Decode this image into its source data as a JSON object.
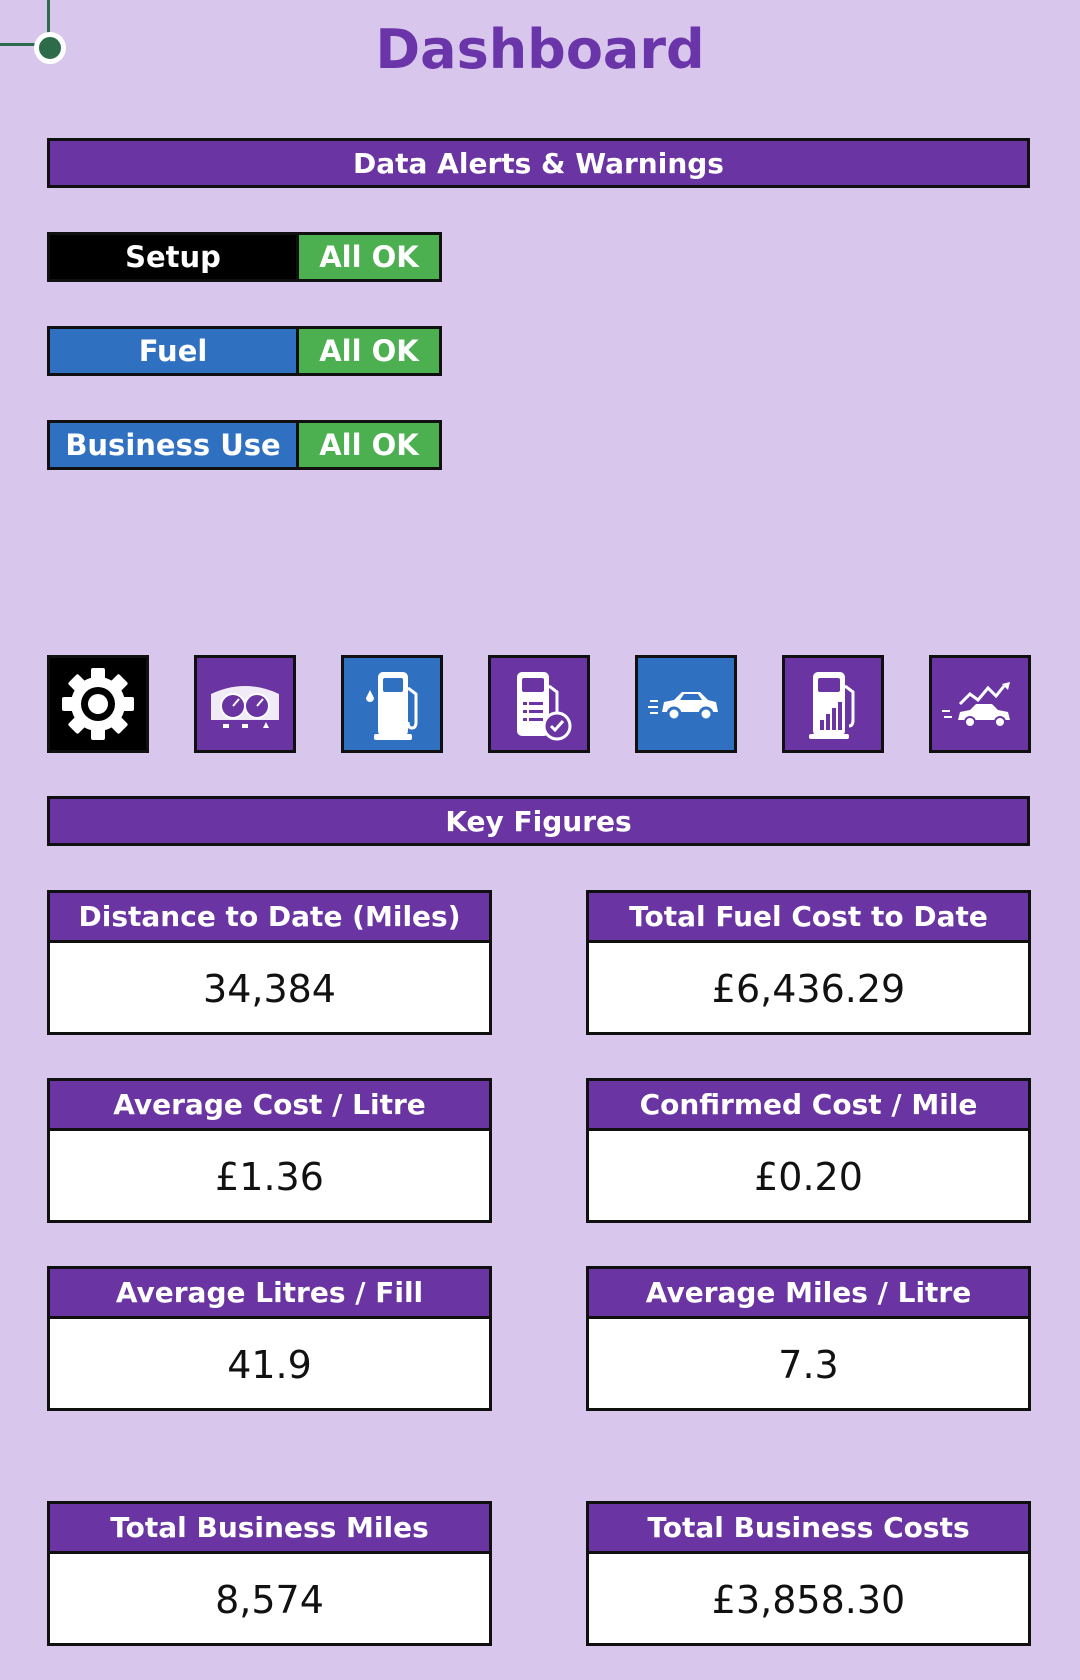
{
  "title": "Dashboard",
  "alerts_banner": "Data Alerts & Warnings",
  "alerts": [
    {
      "label": "Setup",
      "status": "All OK",
      "color": "#000000"
    },
    {
      "label": "Fuel",
      "status": "All OK",
      "color": "#3070c0"
    },
    {
      "label": "Business Use",
      "status": "All OK",
      "color": "#3070c0"
    }
  ],
  "icons": [
    {
      "name": "settings-gear-icon",
      "bg": "#000000"
    },
    {
      "name": "dashboard-gauges-icon",
      "bg": "#6a35a2"
    },
    {
      "name": "fuel-pump-icon",
      "bg": "#3070c0"
    },
    {
      "name": "fuel-log-check-icon",
      "bg": "#6a35a2"
    },
    {
      "name": "car-icon",
      "bg": "#3070c0"
    },
    {
      "name": "fuel-stats-icon",
      "bg": "#6a35a2"
    },
    {
      "name": "business-trip-car-icon",
      "bg": "#6a35a2"
    }
  ],
  "key_figures_banner": "Key Figures",
  "figures": [
    {
      "label": "Distance to Date (Miles)",
      "value": "34,384"
    },
    {
      "label": "Total Fuel Cost to Date",
      "value": "£6,436.29"
    },
    {
      "label": "Average Cost / Litre",
      "value": "£1.36"
    },
    {
      "label": "Confirmed Cost / Mile",
      "value": "£0.20"
    },
    {
      "label": "Average Litres / Fill",
      "value": "41.9"
    },
    {
      "label": "Average Miles / Litre",
      "value": "7.3"
    },
    {
      "label": "Total Business Miles",
      "value": "8,574"
    },
    {
      "label": "Total Business Costs",
      "value": "£3,858.30"
    }
  ]
}
